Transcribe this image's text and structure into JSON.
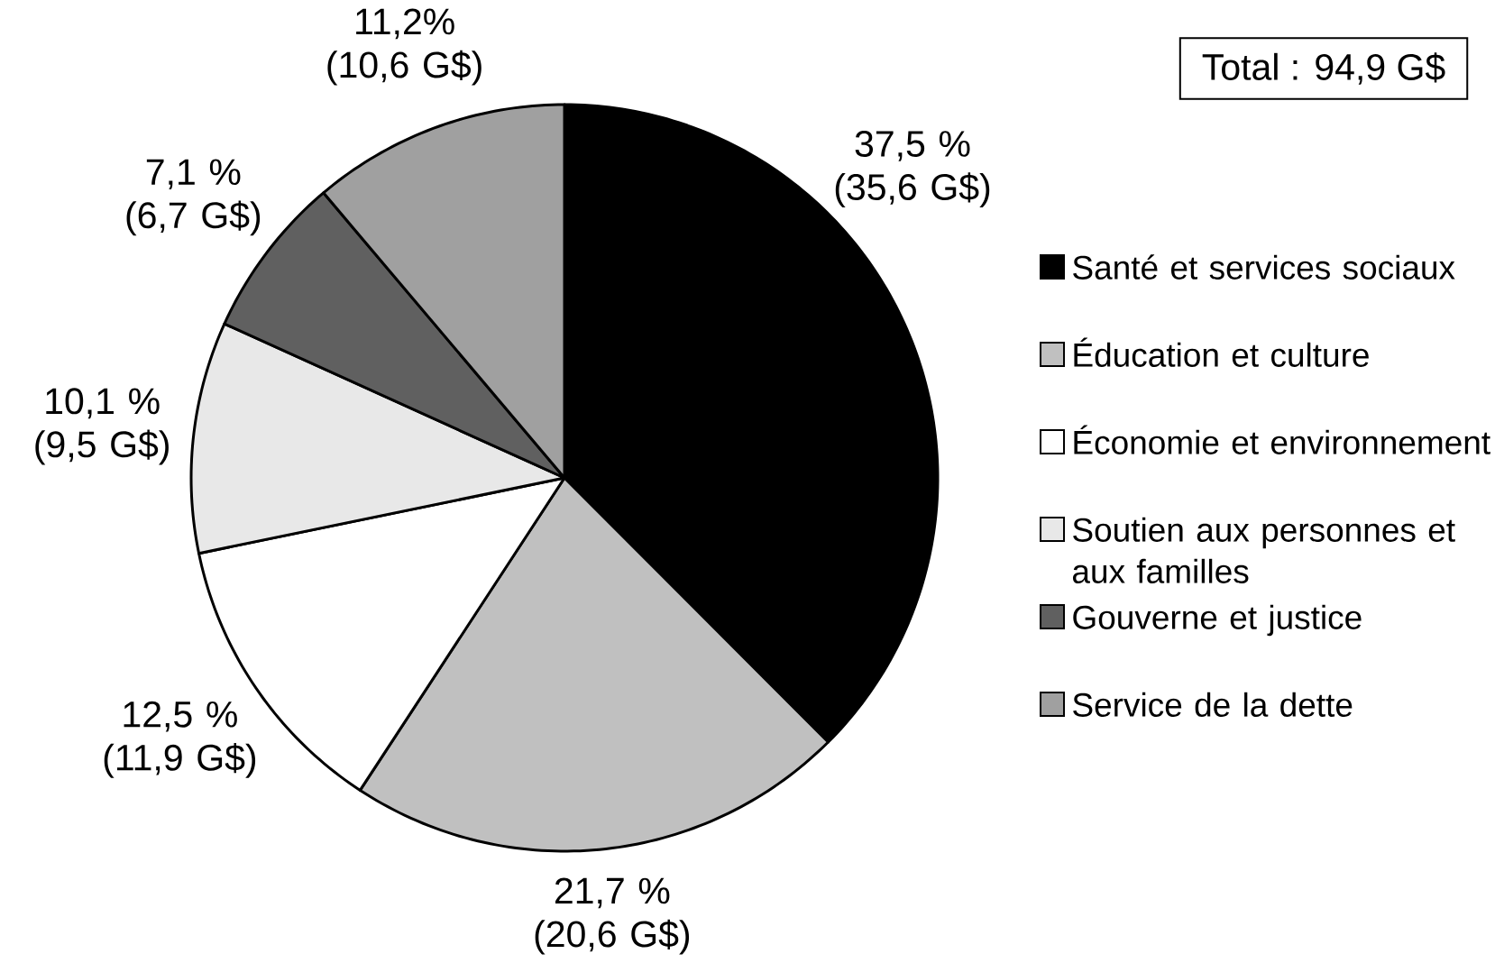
{
  "chart_data": {
    "type": "pie",
    "categories": [
      "Santé et services sociaux",
      "Éducation et culture",
      "Économie et environnement",
      "Soutien aux personnes et aux familles",
      "Gouverne et justice",
      "Service de la dette"
    ],
    "values": [
      35.6,
      20.6,
      11.9,
      9.5,
      6.7,
      10.6
    ],
    "colors": [
      "#000000",
      "#c0c0c0",
      "#ffffff",
      "#e8e8e8",
      "#606060",
      "#a0a0a0"
    ],
    "value_labels": [
      "37,5 % (35,6 G$)",
      "21,7 % (20,6 G$)",
      "12,5 % (11,9 G$)",
      "10,1 % (9,5 G$)",
      "7,1 % (6,7 G$)",
      "11,2% (10,6 G$)"
    ],
    "legend": "right",
    "annotations": [
      "Total : 94,9 G$"
    ]
  }
}
